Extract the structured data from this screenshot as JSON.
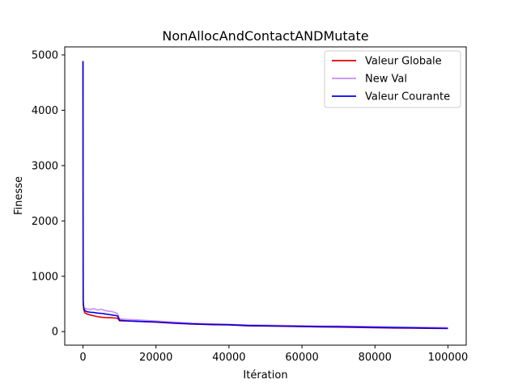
{
  "chart_data": {
    "type": "line",
    "title": "NonAllocAndContactANDMutate",
    "xlabel": "Itération",
    "ylabel": "Finesse",
    "xlim": [
      -5000,
      105000
    ],
    "ylim": [
      -245,
      5145
    ],
    "xticks": [
      0,
      20000,
      40000,
      60000,
      80000,
      100000
    ],
    "yticks": [
      0,
      1000,
      2000,
      3000,
      4000,
      5000
    ],
    "grid": false,
    "legend_position": "top-right",
    "series": [
      {
        "name": "Valeur Globale",
        "color": "#e00000",
        "x": [
          0,
          50,
          200,
          500,
          1000,
          2000,
          3000,
          4000,
          5000,
          6000,
          8000,
          9500,
          10000,
          15000,
          20000,
          25000,
          30000,
          35000,
          40000,
          45000,
          50000,
          55000,
          60000,
          65000,
          70000,
          75000,
          80000,
          85000,
          90000,
          95000,
          100000
        ],
        "y": [
          4890,
          520,
          400,
          340,
          320,
          300,
          285,
          270,
          260,
          255,
          250,
          240,
          195,
          185,
          170,
          150,
          135,
          125,
          120,
          105,
          100,
          95,
          90,
          85,
          80,
          75,
          70,
          65,
          62,
          58,
          55
        ]
      },
      {
        "name": "New Val",
        "color": "#c88ef0",
        "x": [
          0,
          50,
          200,
          500,
          1000,
          2000,
          3000,
          4000,
          5000,
          6000,
          7000,
          8000,
          9000,
          9500,
          10000,
          12000,
          15000,
          20000,
          25000,
          30000,
          35000,
          40000,
          45000,
          50000,
          55000,
          60000,
          65000,
          70000,
          75000,
          80000,
          85000,
          90000,
          95000,
          100000
        ],
        "y": [
          4890,
          560,
          450,
          420,
          410,
          400,
          415,
          390,
          405,
          380,
          370,
          360,
          340,
          320,
          230,
          220,
          210,
          190,
          170,
          150,
          140,
          130,
          120,
          115,
          110,
          105,
          100,
          100,
          95,
          90,
          85,
          80,
          75,
          72
        ]
      },
      {
        "name": "Valeur Courante",
        "color": "#0000ee",
        "x": [
          0,
          50,
          200,
          500,
          1000,
          2000,
          3000,
          4000,
          5000,
          6000,
          7000,
          8000,
          9000,
          9500,
          10000,
          12000,
          15000,
          20000,
          25000,
          30000,
          35000,
          40000,
          45000,
          50000,
          55000,
          60000,
          65000,
          70000,
          75000,
          80000,
          85000,
          90000,
          95000,
          100000
        ],
        "y": [
          4890,
          540,
          420,
          380,
          360,
          350,
          345,
          335,
          330,
          320,
          310,
          300,
          290,
          280,
          205,
          195,
          185,
          175,
          155,
          140,
          130,
          125,
          110,
          105,
          100,
          95,
          90,
          88,
          82,
          78,
          72,
          68,
          62,
          58
        ]
      }
    ]
  }
}
